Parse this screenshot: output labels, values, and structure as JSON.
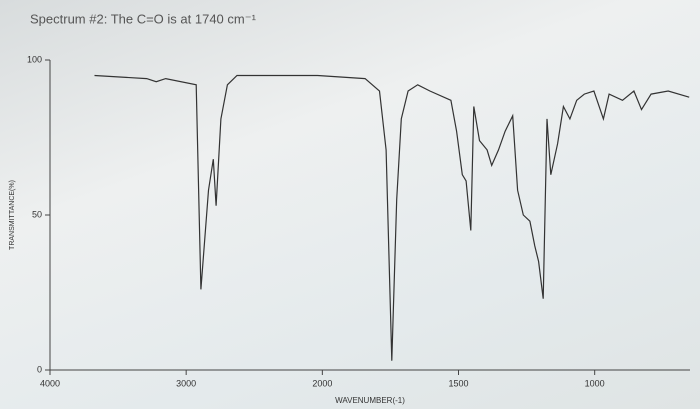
{
  "chart_data": {
    "type": "line",
    "title": "Spectrum #2: The C=O is at 1740 cm⁻¹",
    "x_label": "WAVENUMBER(-1)",
    "y_label": "TRANSMITTANCE(%)",
    "series": [
      {
        "color": "#333333",
        "x": [
          3673,
          3290,
          3220,
          3150,
          2926,
          2892,
          2836,
          2801,
          2780,
          2745,
          2697,
          2627,
          2035,
          1843,
          1790,
          1766,
          1745,
          1727,
          1710,
          1685,
          1650,
          1605,
          1528,
          1507,
          1486,
          1472,
          1455,
          1444,
          1423,
          1395,
          1378,
          1353,
          1329,
          1301,
          1283,
          1262,
          1238,
          1220,
          1206,
          1189,
          1175,
          1161,
          1136,
          1115,
          1091,
          1066,
          1038,
          1003,
          968,
          947,
          898,
          856,
          828,
          793,
          730,
          653
        ],
        "values": [
          95,
          94,
          93,
          94,
          92,
          26,
          58,
          68,
          53,
          81,
          92,
          95,
          95,
          94,
          90,
          71,
          3,
          55,
          81,
          90,
          92,
          90,
          87,
          77,
          63,
          61,
          45,
          85,
          74,
          71,
          66,
          71,
          77,
          82,
          58,
          50,
          48,
          40,
          35,
          23,
          81,
          63,
          73,
          85,
          81,
          87,
          89,
          90,
          81,
          89,
          87,
          90,
          84,
          89,
          90,
          88
        ]
      }
    ],
    "xlim": [
      4000,
      650
    ],
    "xticks": [
      4000,
      3000,
      2000,
      1500,
      1000
    ],
    "ylim": [
      0,
      100
    ],
    "yticks": [
      0,
      50,
      100
    ]
  }
}
